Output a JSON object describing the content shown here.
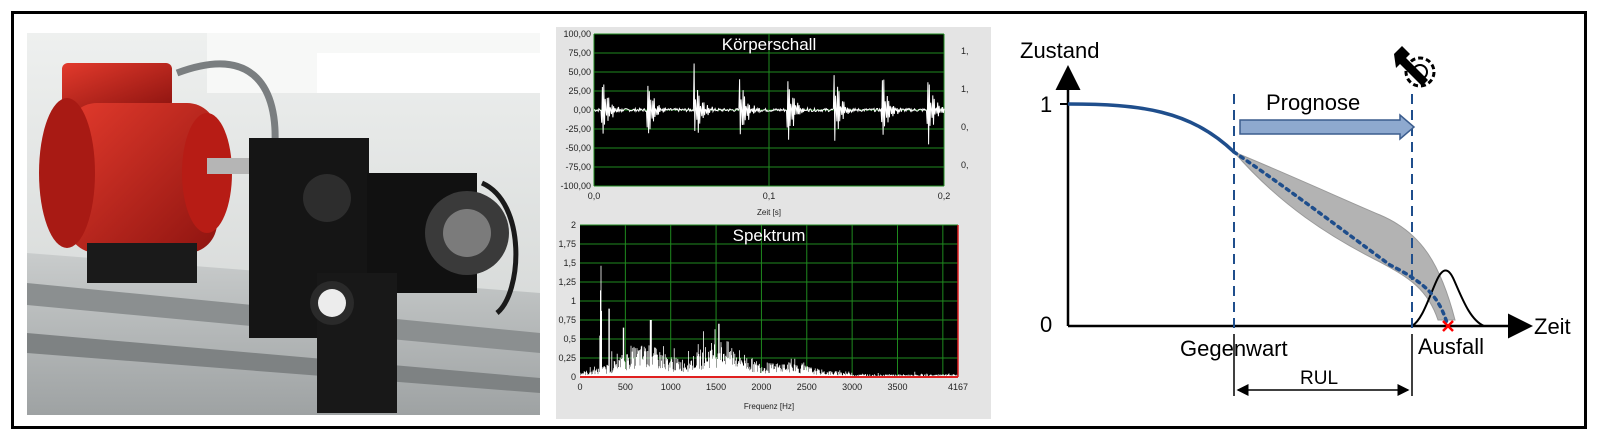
{
  "photo": {
    "subject": "electric-motor-test-rig"
  },
  "scope_top": {
    "title": "Körperschall",
    "y_ticks": [
      "100,00",
      "75,00",
      "50,00",
      "25,00",
      "0,00",
      "-25,00",
      "-50,00",
      "-75,00",
      "-100,00"
    ],
    "x_ticks": [
      "0,0",
      "0,1",
      "0,2"
    ],
    "xlabel": "Zeit [s]",
    "right_ticks": [
      "1,",
      "1,",
      "0,",
      "0,"
    ],
    "burst_times": [
      0.004,
      0.03,
      0.057,
      0.083,
      0.11,
      0.137,
      0.164,
      0.19
    ],
    "xlim": [
      0,
      0.2
    ],
    "ylim": [
      -100,
      100
    ]
  },
  "scope_bottom": {
    "title": "Spektrum",
    "y_ticks": [
      "2",
      "1,75",
      "1,5",
      "1,25",
      "1",
      "0,75",
      "0,5",
      "0,25",
      "0"
    ],
    "x_ticks": [
      "0",
      "500",
      "1000",
      "1500",
      "2000",
      "2500",
      "3000",
      "3500",
      "4167"
    ],
    "xlabel": "Frequenz [Hz]",
    "xlim": [
      0,
      4167
    ],
    "ylim": [
      0,
      2
    ]
  },
  "diagram": {
    "ylabel": "Zustand",
    "xlabel": "Zeit",
    "y_one": "1",
    "y_zero": "0",
    "prognose": "Prognose",
    "gegenwart": "Gegenwart",
    "ausfall": "Ausfall",
    "rul": "RUL",
    "icon": "maintenance-wrench-gear-icon"
  },
  "colors": {
    "curve": "#1f4e8c",
    "scope_bg": "#000000",
    "scope_grid": "#1f8a1f",
    "arrow_fill": "#8ea9cf",
    "band": "#b3b3b3",
    "fail_mark": "#ff0000",
    "motor": "#c0221b"
  }
}
